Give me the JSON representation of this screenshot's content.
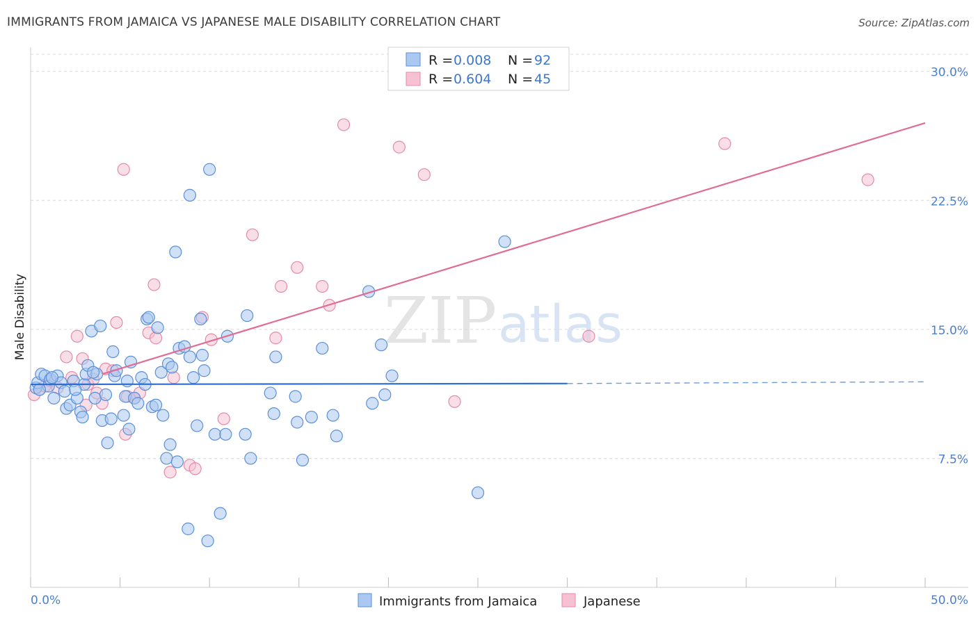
{
  "title": "IMMIGRANTS FROM JAMAICA VS JAPANESE MALE DISABILITY CORRELATION CHART",
  "source": "Source: ZipAtlas.com",
  "colors": {
    "blue_fill": "#aac8f0",
    "blue_stroke": "#5b8fd8",
    "blue_line": "#2e6fcf",
    "pink_fill": "#f6c2d3",
    "pink_stroke": "#e48aaa",
    "pink_line": "#e06c96",
    "grid": "#d9d9d9",
    "tick_text": "#4a7fd0"
  },
  "legend_top": {
    "rows": [
      {
        "r_label": "R = ",
        "r_value": "0.008",
        "n_label": "N = ",
        "n_value": "92",
        "color": "blue"
      },
      {
        "r_label": "R = ",
        "r_value": "0.604",
        "n_label": "N = ",
        "n_value": "45",
        "color": "pink"
      }
    ]
  },
  "legend_bottom": [
    "Immigrants from Jamaica",
    "Japanese"
  ],
  "watermark": {
    "zip": "ZIP",
    "atlas": "atlas"
  },
  "chart_data": {
    "type": "scatter",
    "title": "IMMIGRANTS FROM JAMAICA VS JAPANESE MALE DISABILITY CORRELATION CHART",
    "xlabel": "",
    "ylabel": "Male Disability",
    "xlim": [
      0,
      50
    ],
    "ylim": [
      0,
      31
    ],
    "x_tick_labels": [
      "0.0%",
      "50.0%"
    ],
    "y_ticks": [
      7.5,
      15.0,
      22.5,
      30.0
    ],
    "y_tick_labels": [
      "7.5%",
      "15.0%",
      "22.5%",
      "30.0%"
    ],
    "grid": true,
    "legend_position": "top-center",
    "series": [
      {
        "name": "Immigrants from Jamaica",
        "color": "#5b8fd8",
        "r": 0.008,
        "n": 92,
        "trend": {
          "x": [
            0,
            30
          ],
          "y": [
            11.8,
            11.85
          ],
          "dashed_extension": {
            "x": [
              30,
              50
            ],
            "y": [
              11.85,
              11.95
            ]
          }
        },
        "points": [
          [
            0.3,
            11.6
          ],
          [
            0.4,
            11.9
          ],
          [
            0.6,
            12.4
          ],
          [
            0.8,
            12.3
          ],
          [
            1.0,
            11.7
          ],
          [
            1.1,
            12.1
          ],
          [
            1.3,
            11.0
          ],
          [
            1.5,
            12.3
          ],
          [
            1.7,
            11.9
          ],
          [
            1.9,
            11.4
          ],
          [
            2.0,
            10.4
          ],
          [
            2.2,
            10.6
          ],
          [
            2.4,
            12.0
          ],
          [
            2.6,
            11.0
          ],
          [
            2.8,
            10.2
          ],
          [
            2.9,
            9.9
          ],
          [
            3.0,
            11.8
          ],
          [
            3.1,
            12.4
          ],
          [
            3.2,
            12.9
          ],
          [
            3.4,
            14.9
          ],
          [
            3.6,
            11.0
          ],
          [
            3.7,
            12.4
          ],
          [
            3.9,
            15.2
          ],
          [
            4.0,
            9.7
          ],
          [
            4.2,
            11.2
          ],
          [
            4.3,
            8.4
          ],
          [
            4.5,
            9.8
          ],
          [
            4.6,
            13.7
          ],
          [
            4.7,
            12.3
          ],
          [
            4.8,
            12.6
          ],
          [
            5.2,
            10.0
          ],
          [
            5.3,
            11.1
          ],
          [
            5.4,
            12.0
          ],
          [
            5.5,
            9.2
          ],
          [
            5.6,
            13.1
          ],
          [
            5.8,
            11.0
          ],
          [
            6.0,
            10.7
          ],
          [
            6.2,
            12.2
          ],
          [
            6.4,
            11.8
          ],
          [
            6.5,
            15.6
          ],
          [
            6.6,
            15.7
          ],
          [
            6.8,
            10.5
          ],
          [
            7.0,
            10.6
          ],
          [
            7.1,
            15.1
          ],
          [
            7.3,
            12.5
          ],
          [
            7.4,
            10.0
          ],
          [
            7.6,
            7.5
          ],
          [
            7.7,
            13.0
          ],
          [
            7.8,
            8.3
          ],
          [
            7.9,
            12.8
          ],
          [
            8.1,
            19.5
          ],
          [
            8.2,
            7.3
          ],
          [
            8.3,
            13.9
          ],
          [
            8.6,
            14.0
          ],
          [
            8.8,
            3.4
          ],
          [
            8.9,
            13.4
          ],
          [
            8.9,
            22.8
          ],
          [
            9.1,
            12.2
          ],
          [
            9.3,
            9.4
          ],
          [
            9.5,
            15.6
          ],
          [
            9.6,
            13.5
          ],
          [
            9.7,
            12.6
          ],
          [
            9.9,
            2.7
          ],
          [
            10.0,
            24.3
          ],
          [
            10.3,
            8.9
          ],
          [
            10.6,
            4.3
          ],
          [
            10.9,
            8.9
          ],
          [
            11.0,
            14.6
          ],
          [
            12.0,
            8.9
          ],
          [
            12.1,
            15.8
          ],
          [
            12.3,
            7.5
          ],
          [
            13.4,
            11.3
          ],
          [
            13.6,
            10.1
          ],
          [
            13.7,
            13.4
          ],
          [
            14.8,
            11.1
          ],
          [
            14.9,
            9.6
          ],
          [
            15.2,
            7.4
          ],
          [
            15.7,
            9.9
          ],
          [
            16.3,
            13.9
          ],
          [
            16.9,
            10.0
          ],
          [
            17.1,
            8.8
          ],
          [
            18.9,
            17.2
          ],
          [
            19.1,
            10.7
          ],
          [
            19.6,
            14.1
          ],
          [
            19.8,
            11.2
          ],
          [
            20.2,
            12.3
          ],
          [
            25.0,
            5.5
          ],
          [
            26.5,
            20.1
          ],
          [
            0.5,
            11.5
          ],
          [
            1.2,
            12.2
          ],
          [
            2.5,
            11.5
          ],
          [
            3.5,
            12.5
          ]
        ]
      },
      {
        "name": "Japanese",
        "color": "#e48aaa",
        "r": 0.604,
        "n": 45,
        "trend": {
          "x": [
            4,
            50
          ],
          "y": [
            12.4,
            27.0
          ]
        },
        "points": [
          [
            0.2,
            11.2
          ],
          [
            0.5,
            11.5
          ],
          [
            0.8,
            11.7
          ],
          [
            1.1,
            12.0
          ],
          [
            1.5,
            11.6
          ],
          [
            2.0,
            13.4
          ],
          [
            2.3,
            12.2
          ],
          [
            2.6,
            14.6
          ],
          [
            2.9,
            13.3
          ],
          [
            3.1,
            10.6
          ],
          [
            3.2,
            11.8
          ],
          [
            3.5,
            12.1
          ],
          [
            3.7,
            11.3
          ],
          [
            4.0,
            10.7
          ],
          [
            4.2,
            12.7
          ],
          [
            4.6,
            12.6
          ],
          [
            4.8,
            15.4
          ],
          [
            5.2,
            24.3
          ],
          [
            5.3,
            8.9
          ],
          [
            5.4,
            11.1
          ],
          [
            5.8,
            11.0
          ],
          [
            6.1,
            11.3
          ],
          [
            6.6,
            14.8
          ],
          [
            6.9,
            17.6
          ],
          [
            7.0,
            14.5
          ],
          [
            7.8,
            6.7
          ],
          [
            8.0,
            12.2
          ],
          [
            8.9,
            7.1
          ],
          [
            9.2,
            6.9
          ],
          [
            9.6,
            15.7
          ],
          [
            10.1,
            14.4
          ],
          [
            10.8,
            9.8
          ],
          [
            12.4,
            20.5
          ],
          [
            13.7,
            14.5
          ],
          [
            14.0,
            17.5
          ],
          [
            14.9,
            18.6
          ],
          [
            16.3,
            17.5
          ],
          [
            16.7,
            16.4
          ],
          [
            17.5,
            26.9
          ],
          [
            20.6,
            25.6
          ],
          [
            22.0,
            24.0
          ],
          [
            23.7,
            10.8
          ],
          [
            31.2,
            14.6
          ],
          [
            38.8,
            25.8
          ],
          [
            46.8,
            23.7
          ]
        ]
      }
    ]
  }
}
